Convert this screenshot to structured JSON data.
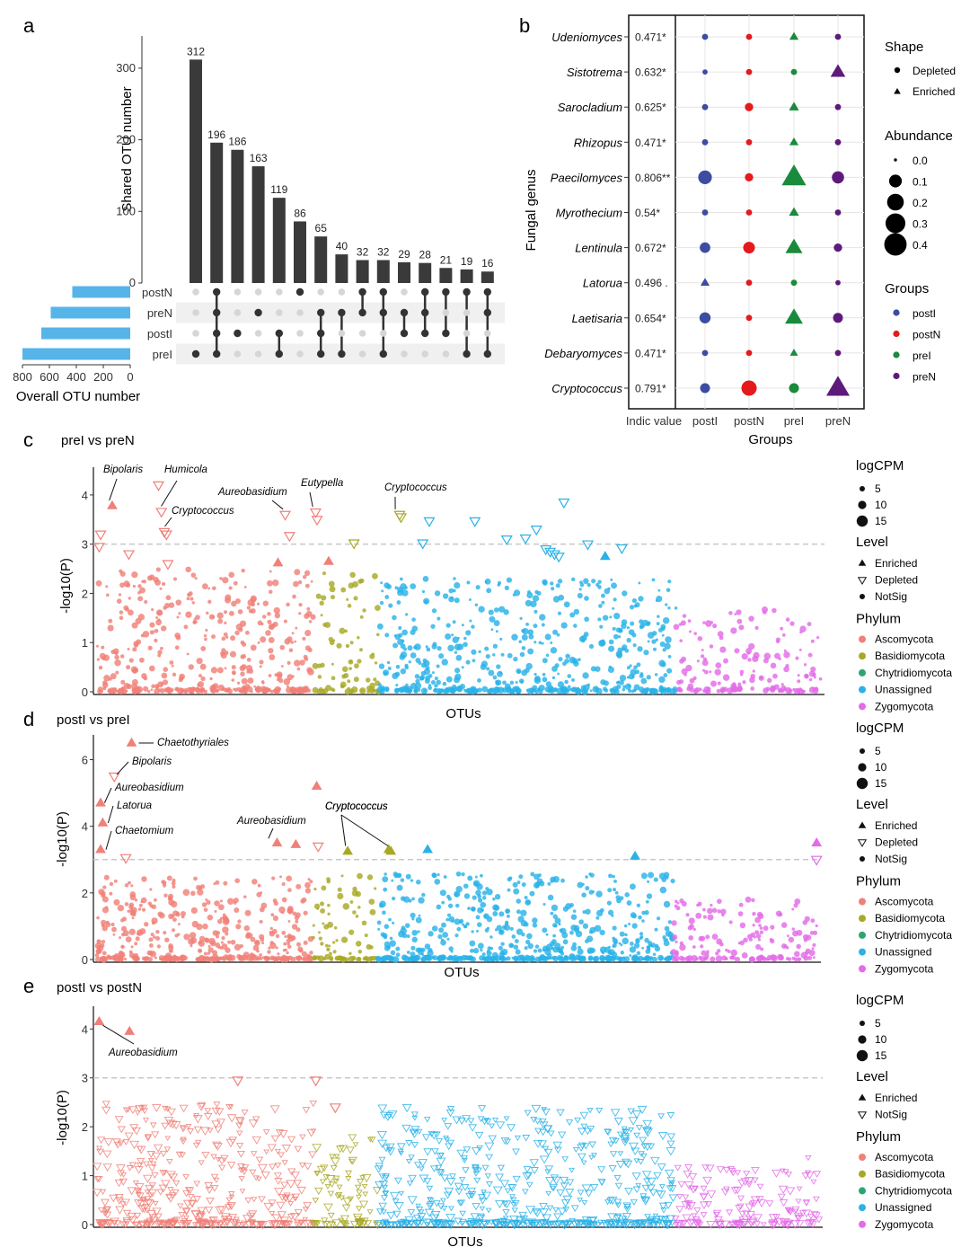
{
  "panel_labels": [
    "a",
    "b",
    "c",
    "d",
    "e"
  ],
  "chart_data": [
    {
      "id": "a",
      "type": "bar",
      "subtype": "upset",
      "ylabel": "Shared OTU number",
      "xlabel_sets": "Overall OTU number",
      "ylim": [
        0,
        340
      ],
      "yticks": [
        0,
        100,
        200,
        300
      ],
      "intersection_values": [
        312,
        196,
        186,
        163,
        119,
        86,
        65,
        40,
        32,
        32,
        29,
        28,
        21,
        19,
        16
      ],
      "sets": [
        "postN",
        "preN",
        "postI",
        "preI"
      ],
      "set_sizes": [
        430,
        590,
        660,
        800
      ],
      "set_xlim": [
        0,
        800
      ],
      "set_xticks": [
        800,
        600,
        400,
        200,
        0
      ],
      "set_color": "#56B4E9",
      "bar_color": "#3a3a3a",
      "memberships": [
        [
          "preI"
        ],
        [
          "postN",
          "preN",
          "postI",
          "preI"
        ],
        [
          "postI"
        ],
        [
          "preN"
        ],
        [
          "postI",
          "preI"
        ],
        [
          "postN"
        ],
        [
          "preN",
          "postI",
          "preI"
        ],
        [
          "preN",
          "preI"
        ],
        [
          "postN",
          "preN"
        ],
        [
          "postN",
          "preN",
          "preI"
        ],
        [
          "preN",
          "postI"
        ],
        [
          "postN",
          "preN",
          "postI"
        ],
        [
          "postN",
          "postI"
        ],
        [
          "postN",
          "preI"
        ],
        [
          "postN",
          "preN",
          "preI"
        ]
      ]
    },
    {
      "id": "b",
      "type": "scatter",
      "subtype": "indicator-dotplot",
      "ylabel": "Fungal genus",
      "xlabel": "Groups",
      "indic_header": "Indic value",
      "genera": [
        "Udeniomyces",
        "Sistotrema",
        "Sarocladium",
        "Rhizopus",
        "Paecilomyces",
        "Myrothecium",
        "Lentinula",
        "Latorua",
        "Laetisaria",
        "Debaryomyces",
        "Cryptococcus"
      ],
      "indic_values": [
        "0.471*",
        "0.632*",
        "0.625*",
        "0.471*",
        "0.806**",
        "0.54*",
        "0.672*",
        "0.496 .",
        "0.654*",
        "0.471*",
        "0.791*"
      ],
      "groups": [
        "postI",
        "postN",
        "preI",
        "preN"
      ],
      "group_colors": [
        "#3B4CA1",
        "#E41A1C",
        "#1A8A3C",
        "#5E1A7A"
      ],
      "abundance": [
        [
          0.01,
          0.01,
          0.03,
          0.01
        ],
        [
          0.005,
          0.01,
          0.01,
          0.12
        ],
        [
          0.01,
          0.03,
          0.04,
          0.01
        ],
        [
          0.01,
          0.01,
          0.03,
          0.01
        ],
        [
          0.12,
          0.03,
          0.4,
          0.09
        ],
        [
          0.01,
          0.01,
          0.04,
          0.01
        ],
        [
          0.06,
          0.08,
          0.17,
          0.03
        ],
        [
          0.03,
          0.01,
          0.01,
          0.005
        ],
        [
          0.07,
          0.01,
          0.19,
          0.05
        ],
        [
          0.01,
          0.01,
          0.02,
          0.01
        ],
        [
          0.05,
          0.16,
          0.05,
          0.36
        ]
      ],
      "shape": [
        [
          "circle",
          "circle",
          "triangle",
          "circle"
        ],
        [
          "circle",
          "circle",
          "circle",
          "triangle"
        ],
        [
          "circle",
          "circle",
          "triangle",
          "circle"
        ],
        [
          "circle",
          "circle",
          "triangle",
          "circle"
        ],
        [
          "circle",
          "circle",
          "triangle",
          "circle"
        ],
        [
          "circle",
          "circle",
          "triangle",
          "circle"
        ],
        [
          "circle",
          "circle",
          "triangle",
          "circle"
        ],
        [
          "triangle",
          "circle",
          "circle",
          "circle"
        ],
        [
          "circle",
          "circle",
          "triangle",
          "circle"
        ],
        [
          "circle",
          "circle",
          "triangle",
          "circle"
        ],
        [
          "circle",
          "circle",
          "circle",
          "triangle"
        ]
      ],
      "legend": {
        "shape_title": "Shape",
        "shape_items": [
          "Depleted",
          "Enriched"
        ],
        "abundance_title": "Abundance",
        "abundance_items": [
          "0.0",
          "0.1",
          "0.2",
          "0.3",
          "0.4"
        ],
        "groups_title": "Groups",
        "groups_items": [
          "postI",
          "postN",
          "preI",
          "preN"
        ]
      }
    },
    {
      "id": "c",
      "type": "scatter",
      "subtype": "manhattan",
      "title": "preI vs preN",
      "xlabel": "OTUs",
      "ylabel": "-log10(P)",
      "ylim": [
        0,
        4.4
      ],
      "yticks": [
        0,
        1,
        2,
        3,
        4
      ],
      "threshold": 3,
      "annotations": [
        {
          "text": "Bipolaris",
          "x": 0.017,
          "y": 3.78
        },
        {
          "text": "Humicola",
          "x": 0.085,
          "y": 3.66
        },
        {
          "text": "Cryptococcus",
          "x": 0.09,
          "y": 3.25
        },
        {
          "text": "Aureobasidium",
          "x": 0.257,
          "y": 3.6
        },
        {
          "text": "Eutypella",
          "x": 0.298,
          "y": 3.65
        },
        {
          "text": "Cryptococcus",
          "x": 0.412,
          "y": 3.6
        }
      ],
      "sig_points": [
        {
          "x": 0.005,
          "y": 3.2,
          "s": "d",
          "ph": 0
        },
        {
          "x": 0.003,
          "y": 2.95,
          "s": "d",
          "ph": 0
        },
        {
          "x": 0.021,
          "y": 3.78,
          "s": "e",
          "ph": 0
        },
        {
          "x": 0.044,
          "y": 2.8,
          "s": "d",
          "ph": 0
        },
        {
          "x": 0.085,
          "y": 4.2,
          "s": "d",
          "ph": 0
        },
        {
          "x": 0.089,
          "y": 3.66,
          "s": "d",
          "ph": 0
        },
        {
          "x": 0.093,
          "y": 3.25,
          "s": "d",
          "ph": 0
        },
        {
          "x": 0.096,
          "y": 3.2,
          "s": "d",
          "ph": 0
        },
        {
          "x": 0.098,
          "y": 2.6,
          "s": "d",
          "ph": 0
        },
        {
          "x": 0.26,
          "y": 3.6,
          "s": "d",
          "ph": 0
        },
        {
          "x": 0.266,
          "y": 3.17,
          "s": "d",
          "ph": 0
        },
        {
          "x": 0.25,
          "y": 2.62,
          "s": "e",
          "ph": 0
        },
        {
          "x": 0.302,
          "y": 3.65,
          "s": "d",
          "ph": 0
        },
        {
          "x": 0.304,
          "y": 3.5,
          "s": "d",
          "ph": 0
        },
        {
          "x": 0.32,
          "y": 2.65,
          "s": "e",
          "ph": 0
        },
        {
          "x": 0.355,
          "y": 3.02,
          "s": "d",
          "ph": 1
        },
        {
          "x": 0.418,
          "y": 3.6,
          "s": "d",
          "ph": 1
        },
        {
          "x": 0.42,
          "y": 3.55,
          "s": "d",
          "ph": 1
        },
        {
          "x": 0.45,
          "y": 3.02,
          "s": "d",
          "ph": 3
        },
        {
          "x": 0.459,
          "y": 3.47,
          "s": "d",
          "ph": 3
        },
        {
          "x": 0.522,
          "y": 3.47,
          "s": "d",
          "ph": 3
        },
        {
          "x": 0.566,
          "y": 3.1,
          "s": "d",
          "ph": 3
        },
        {
          "x": 0.592,
          "y": 3.12,
          "s": "d",
          "ph": 3
        },
        {
          "x": 0.607,
          "y": 3.3,
          "s": "d",
          "ph": 3
        },
        {
          "x": 0.626,
          "y": 2.85,
          "s": "d",
          "ph": 3
        },
        {
          "x": 0.632,
          "y": 2.8,
          "s": "d",
          "ph": 3
        },
        {
          "x": 0.638,
          "y": 2.75,
          "s": "d",
          "ph": 3
        },
        {
          "x": 0.645,
          "y": 3.85,
          "s": "d",
          "ph": 3
        },
        {
          "x": 0.678,
          "y": 3.0,
          "s": "d",
          "ph": 3
        },
        {
          "x": 0.702,
          "y": 2.75,
          "s": "e",
          "ph": 3
        },
        {
          "x": 0.725,
          "y": 2.92,
          "s": "d",
          "ph": 3
        },
        {
          "x": 0.62,
          "y": 2.9,
          "s": "d",
          "ph": 3
        }
      ],
      "bg_max": [
        2.5,
        2.45,
        2.5,
        2.3,
        1.7
      ],
      "bg_shape": "circle",
      "legend": {
        "logcpm_title": "logCPM",
        "logcpm_items": [
          "5",
          "10",
          "15"
        ],
        "level_title": "Level",
        "level_items": [
          "Enriched",
          "Depleted",
          "NotSig"
        ],
        "phylum_title": "Phylum",
        "phylum_items": [
          "Ascomycota",
          "Basidiomycota",
          "Chytridiomycota",
          "Unassigned",
          "Zygomycota"
        ]
      }
    },
    {
      "id": "d",
      "type": "scatter",
      "subtype": "manhattan",
      "title": "postI vs preI",
      "xlabel": "OTUs",
      "ylabel": "-log10(P)",
      "ylim": [
        0,
        6.5
      ],
      "yticks": [
        0,
        2,
        4,
        6
      ],
      "threshold": 3,
      "annotations": [
        {
          "text": "Chaetothyriales",
          "x": 0.048,
          "y": 6.5
        },
        {
          "text": "Bipolaris",
          "x": 0.02,
          "y": 5.5
        },
        {
          "text": "Aureobasidium",
          "x": 0.003,
          "y": 4.7
        },
        {
          "text": "Latorua",
          "x": 0.008,
          "y": 4.1
        },
        {
          "text": "Chaetomium",
          "x": 0.005,
          "y": 3.3
        },
        {
          "text": "Aureobasidium",
          "x": 0.243,
          "y": 3.5
        },
        {
          "text": "Cryptococcus",
          "x": 0.345,
          "y": 3.25
        },
        {
          "text": "Cryptococcus",
          "x": 0.404,
          "y": 3.25
        }
      ],
      "sig_points": [
        {
          "x": 0.048,
          "y": 6.5,
          "s": "e",
          "ph": 0
        },
        {
          "x": 0.024,
          "y": 5.5,
          "s": "d",
          "ph": 0
        },
        {
          "x": 0.005,
          "y": 4.7,
          "s": "e",
          "ph": 0
        },
        {
          "x": 0.008,
          "y": 4.1,
          "s": "e",
          "ph": 0
        },
        {
          "x": 0.005,
          "y": 3.3,
          "s": "e",
          "ph": 0
        },
        {
          "x": 0.04,
          "y": 3.05,
          "s": "d",
          "ph": 0
        },
        {
          "x": 0.25,
          "y": 3.5,
          "s": "e",
          "ph": 0
        },
        {
          "x": 0.276,
          "y": 3.45,
          "s": "e",
          "ph": 0
        },
        {
          "x": 0.305,
          "y": 5.2,
          "s": "e",
          "ph": 0
        },
        {
          "x": 0.307,
          "y": 3.4,
          "s": "d",
          "ph": 0
        },
        {
          "x": 0.348,
          "y": 3.25,
          "s": "e",
          "ph": 1
        },
        {
          "x": 0.405,
          "y": 3.3,
          "s": "e",
          "ph": 1
        },
        {
          "x": 0.408,
          "y": 3.25,
          "s": "e",
          "ph": 1
        },
        {
          "x": 0.459,
          "y": 3.3,
          "s": "e",
          "ph": 3
        },
        {
          "x": 0.747,
          "y": 3.1,
          "s": "e",
          "ph": 3
        },
        {
          "x": 0.999,
          "y": 3.5,
          "s": "e",
          "ph": 4
        },
        {
          "x": 0.999,
          "y": 3.0,
          "s": "d",
          "ph": 4
        }
      ],
      "bg_max": [
        2.5,
        2.7,
        1.7,
        2.6,
        1.8
      ],
      "bg_shape": "circle",
      "legend": {
        "logcpm_title": "logCPM",
        "logcpm_items": [
          "5",
          "10",
          "15"
        ],
        "level_title": "Level",
        "level_items": [
          "Enriched",
          "Depleted",
          "NotSig"
        ],
        "phylum_title": "Phylum",
        "phylum_items": [
          "Ascomycota",
          "Basidiomycota",
          "Chytridiomycota",
          "Unassigned",
          "Zygomycota"
        ]
      }
    },
    {
      "id": "e",
      "type": "scatter",
      "subtype": "manhattan",
      "title": "postI vs postN",
      "xlabel": "OTUs",
      "ylabel": "-log10(P)",
      "ylim": [
        0,
        4.3
      ],
      "yticks": [
        0,
        1,
        2,
        3,
        4
      ],
      "threshold": 3,
      "annotations": [
        {
          "text": "Aureobasidium",
          "x": 0.003,
          "y": 4.15
        }
      ],
      "sig_points": [
        {
          "x": 0.003,
          "y": 4.15,
          "s": "e",
          "ph": 0
        },
        {
          "x": 0.045,
          "y": 3.95,
          "s": "e",
          "ph": 0
        },
        {
          "x": 0.195,
          "y": 2.95,
          "s": "n",
          "ph": 0
        },
        {
          "x": 0.303,
          "y": 2.95,
          "s": "n",
          "ph": 0
        },
        {
          "x": 0.33,
          "y": 2.4,
          "s": "n",
          "ph": 0
        }
      ],
      "bg_max": [
        2.5,
        1.8,
        1.0,
        2.4,
        1.4
      ],
      "bg_shape": "tri-down",
      "legend": {
        "logcpm_title": "logCPM",
        "logcpm_items": [
          "5",
          "10",
          "15"
        ],
        "level_title": "Level",
        "level_items": [
          "Enriched",
          "NotSig"
        ],
        "phylum_title": "Phylum",
        "phylum_items": [
          "Ascomycota",
          "Basidiomycota",
          "Chytridiomycota",
          "Unassigned",
          "Zygomycota"
        ]
      }
    }
  ],
  "colors": {
    "Ascomycota": "#F08078",
    "Basidiomycota": "#A8A825",
    "Chytridiomycota": "#2CA571",
    "Unassigned": "#29B2E8",
    "Zygomycota": "#E36BE8"
  },
  "phylum_ranges": [
    [
      0,
      0.3
    ],
    [
      0.3,
      0.39
    ],
    [
      0.39,
      0.39
    ],
    [
      0.39,
      0.8
    ],
    [
      0.8,
      1.0
    ]
  ]
}
